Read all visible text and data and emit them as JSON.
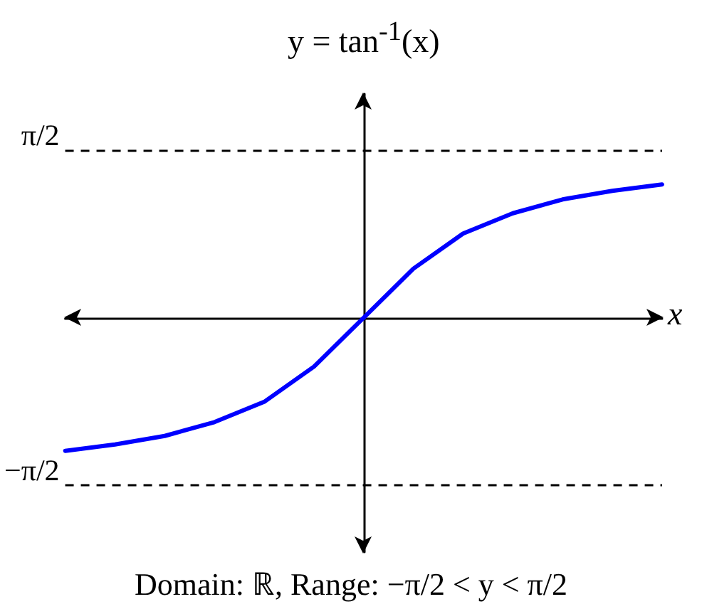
{
  "chart_data": {
    "type": "line",
    "title": "y = tan$^{-1}$(x)",
    "xlabel": "x",
    "annotations": [
      "Domain: ℝ, Range: −π/2 < y < π/2"
    ],
    "categories": [
      null,
      null,
      null,
      null,
      null,
      null,
      null,
      null,
      null,
      null,
      null,
      null,
      null
    ],
    "values": [
      -1.25,
      -1.19,
      -1.11,
      -0.98,
      -0.79,
      -0.46,
      0,
      0.46,
      0.79,
      0.98,
      1.11,
      1.19,
      1.25
    ],
    "color": "#0000ff",
    "marker": "none",
    "line_style": "solid",
    "tick_labels": "y",
    "ylim": [
      -2.2,
      2.1
    ],
    "yticks": [
      {
        "value": 1.5708,
        "label": "π/2"
      },
      {
        "value": -1.5708,
        "label": "−π/2"
      }
    ],
    "ref_lines": [
      {
        "axis": "y",
        "value": 1.5708,
        "color": "#000000",
        "line_style": "dashed"
      },
      {
        "axis": "y",
        "value": -1.5708,
        "color": "#000000",
        "line_style": "dashed"
      }
    ]
  }
}
